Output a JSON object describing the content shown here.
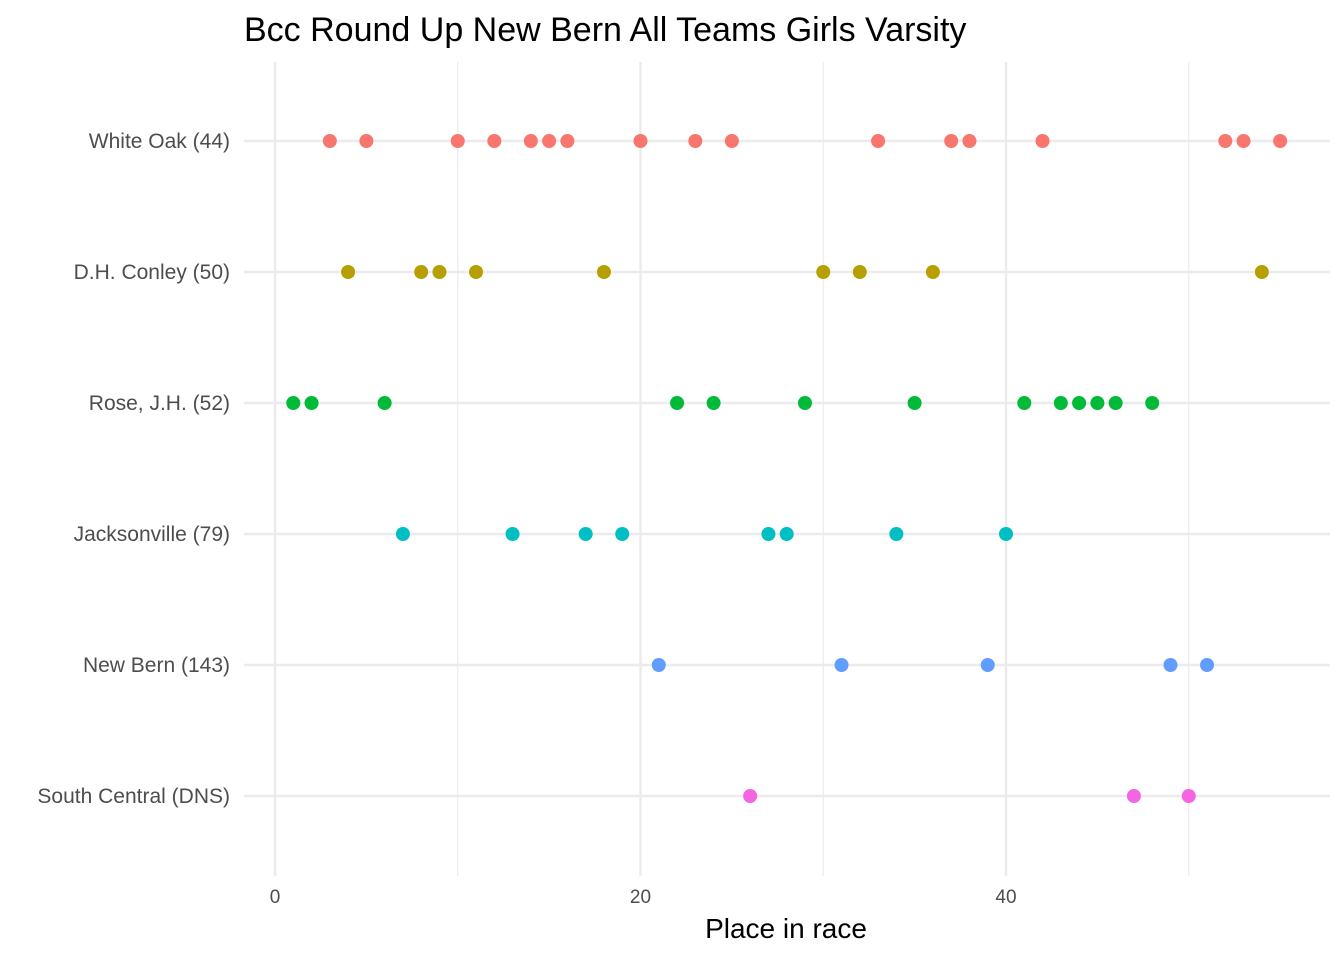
{
  "chart_data": {
    "type": "scatter",
    "title": "Bcc Round Up New Bern All Teams Girls Varsity",
    "xlabel": "Place in race",
    "ylabel": "",
    "xlim": [
      0,
      56
    ],
    "x_ticks": [
      0,
      20,
      40
    ],
    "x_minor_ticks": [
      10,
      30,
      50
    ],
    "grid": true,
    "legend": "none",
    "categories": [
      "White Oak (44)",
      "D.H. Conley (50)",
      "Rose, J.H. (52)",
      "Jacksonville (79)",
      "New Bern (143)",
      "South Central (DNS)"
    ],
    "series": [
      {
        "category": "White Oak (44)",
        "color": "#F8766D",
        "x": [
          3,
          5,
          10,
          12,
          14,
          15,
          16,
          20,
          23,
          25,
          33,
          37,
          38,
          42,
          52,
          53,
          55
        ]
      },
      {
        "category": "D.H. Conley (50)",
        "color": "#B79F00",
        "x": [
          4,
          8,
          9,
          11,
          18,
          30,
          32,
          36,
          54
        ]
      },
      {
        "category": "Rose, J.H. (52)",
        "color": "#00BA38",
        "x": [
          1,
          2,
          6,
          22,
          24,
          29,
          35,
          41,
          43,
          44,
          45,
          46,
          48
        ]
      },
      {
        "category": "Jacksonville (79)",
        "color": "#00BFC4",
        "x": [
          7,
          13,
          17,
          19,
          27,
          28,
          34,
          40
        ]
      },
      {
        "category": "New Bern (143)",
        "color": "#619CFF",
        "x": [
          21,
          31,
          39,
          49,
          51
        ]
      },
      {
        "category": "South Central (DNS)",
        "color": "#F564E3",
        "x": [
          26,
          47,
          50
        ]
      }
    ]
  }
}
